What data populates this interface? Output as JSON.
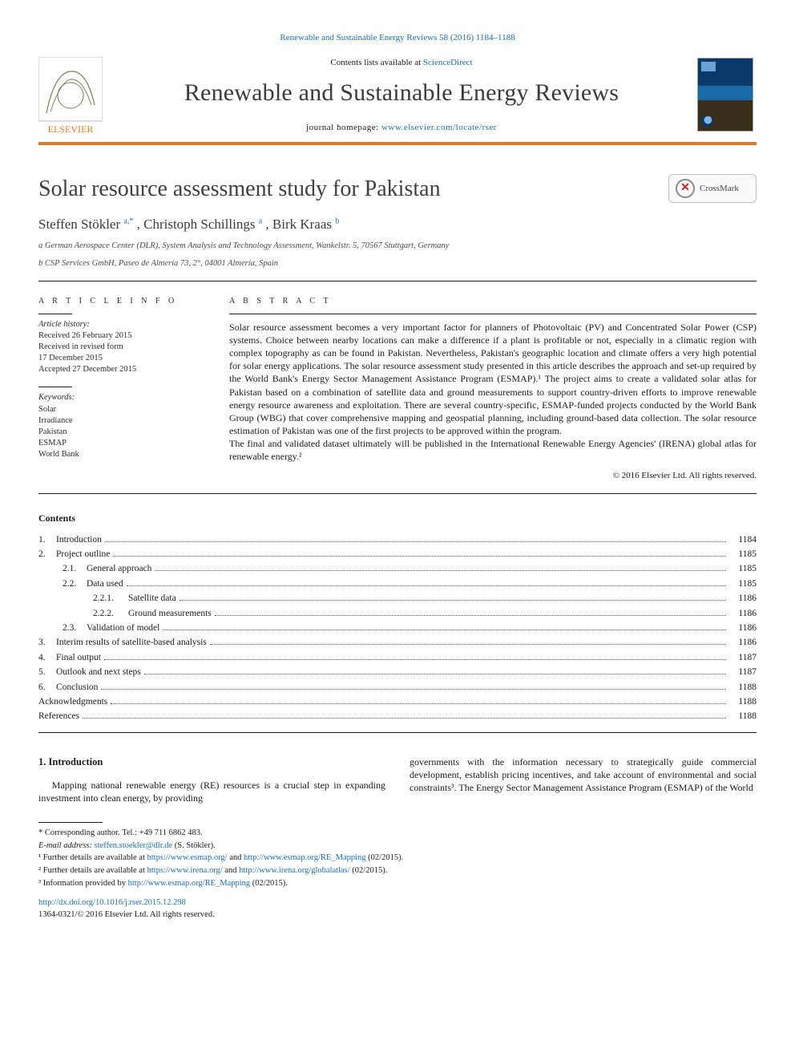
{
  "journal": {
    "citation": "Renewable and Sustainable Energy Reviews 58 (2016) 1184–1188",
    "contentsPrefix": "Contents lists available at ",
    "contentsLink": "ScienceDirect",
    "title": "Renewable and Sustainable Energy Reviews",
    "homepagePrefix": "journal homepage: ",
    "homepageLink": "www.elsevier.com/locate/rser",
    "publisherName": "ELSEVIER"
  },
  "crossmark": {
    "label": "CrossMark"
  },
  "article": {
    "title": "Solar resource assessment study for Pakistan",
    "authors": [
      {
        "name": "Steffen Stökler ",
        "sup": "a,*"
      },
      {
        "name": ", Christoph Schillings ",
        "sup": "a"
      },
      {
        "name": ", Birk Kraas ",
        "sup": "b"
      }
    ],
    "affiliations": [
      "a German Aerospace Center (DLR), System Analysis and Technology Assessment, Wankelstr. 5, 70567 Stuttgart, Germany",
      "b CSP Services GmbH, Paseo de Almería 73, 2°, 04001 Almería, Spain"
    ]
  },
  "info": {
    "headArticle": "A R T I C L E  I N F O",
    "historyLabel": "Article history:",
    "history": [
      "Received 26 February 2015",
      "Received in revised form",
      "17 December 2015",
      "Accepted 27 December 2015"
    ],
    "keywordsLabel": "Keywords:",
    "keywords": [
      "Solar",
      "Irradiance",
      "Pakistan",
      "ESMAP",
      "World Bank"
    ]
  },
  "abstract": {
    "head": "A B S T R A C T",
    "p1": "Solar resource assessment becomes a very important factor for planners of Photovoltaic (PV) and Concentrated Solar Power (CSP) systems. Choice between nearby locations can make a difference if a plant is profitable or not, especially in a climatic region with complex topography as can be found in Pakistan. Nevertheless, Pakistan's geographic location and climate offers a very high potential for solar energy applications. The solar resource assessment study presented in this article describes the approach and set-up required by the World Bank's Energy Sector Management Assistance Program (ESMAP).¹ The project aims to create a validated solar atlas for Pakistan based on a combination of satellite data and ground measurements to support country-driven efforts to improve renewable energy resource awareness and exploitation. There are several country-specific, ESMAP-funded projects conducted by the World Bank Group (WBG) that cover comprehensive mapping and geospatial planning, including ground-based data collection. The solar resource estimation of Pakistan was one of the first projects to be approved within the program.",
    "p2": "The final and validated dataset ultimately will be published in the International Renewable Energy Agencies' (IRENA) global atlas for renewable energy.²",
    "copyright": "© 2016 Elsevier Ltd. All rights reserved."
  },
  "contents": {
    "head": "Contents",
    "items": [
      {
        "level": 1,
        "num": "1.",
        "label": "Introduction",
        "page": "1184"
      },
      {
        "level": 1,
        "num": "2.",
        "label": "Project outline",
        "page": "1185"
      },
      {
        "level": 2,
        "num": "2.1.",
        "label": "General approach",
        "page": "1185"
      },
      {
        "level": 2,
        "num": "2.2.",
        "label": "Data used",
        "page": "1185"
      },
      {
        "level": 3,
        "num": "2.2.1.",
        "label": "Satellite data",
        "page": "1186"
      },
      {
        "level": 3,
        "num": "2.2.2.",
        "label": "Ground measurements",
        "page": "1186"
      },
      {
        "level": 2,
        "num": "2.3.",
        "label": "Validation of model",
        "page": "1186"
      },
      {
        "level": 1,
        "num": "3.",
        "label": "Interim results of satellite-based analysis",
        "page": "1186"
      },
      {
        "level": 1,
        "num": "4.",
        "label": "Final output",
        "page": "1187"
      },
      {
        "level": 1,
        "num": "5.",
        "label": "Outlook and next steps",
        "page": "1187"
      },
      {
        "level": 1,
        "num": "6.",
        "label": "Conclusion",
        "page": "1188"
      },
      {
        "level": 0,
        "num": "",
        "label": "Acknowledgments",
        "page": "1188"
      },
      {
        "level": 0,
        "num": "",
        "label": "References",
        "page": "1188"
      }
    ]
  },
  "body": {
    "sec1head": "1.  Introduction",
    "leftPara": "Mapping national renewable energy (RE) resources is a crucial step in expanding investment into clean energy, by providing",
    "rightPara": "governments with the information necessary to strategically guide commercial development, establish pricing incentives, and take account of environmental and social constraints³. The Energy Sector Management Assistance Program (ESMAP) of the World"
  },
  "footnotes": {
    "corr": "* Corresponding author. Tel.: +49 711 6862 483.",
    "emailLabel": "E-mail address: ",
    "email": "steffen.stoekler@dlr.de",
    "emailSuffix": " (S. Stökler).",
    "fn1a": "¹ Further details are available at ",
    "fn1l1": "https://www.esmap.org/",
    "fn1m": " and ",
    "fn1l2": "http://www.esmap.org/RE_Mapping",
    "fn1s": " (02/2015).",
    "fn2a": "² Further details are available at ",
    "fn2l1": "https://www.irena.org/",
    "fn2m": " and ",
    "fn2l2": "http://www.irena.org/globalatlas/",
    "fn2s": " (02/2015).",
    "fn3a": "³ Information provided by ",
    "fn3l1": "http://www.esmap.org/RE_Mapping",
    "fn3s": " (02/2015)."
  },
  "doi": {
    "link": "http://dx.doi.org/10.1016/j.rser.2015.12.298",
    "issn": "1364-0321/© 2016 Elsevier Ltd. All rights reserved."
  },
  "colors": {
    "accentOrange": "#e87722",
    "linkBlue": "#1b6fb5",
    "textGray": "#3b3b3b"
  }
}
